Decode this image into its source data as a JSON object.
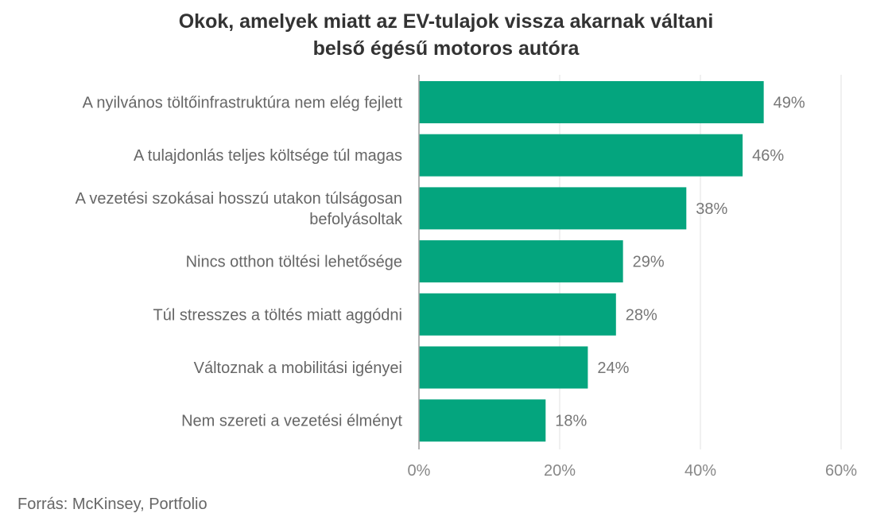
{
  "chart_data": {
    "type": "bar",
    "orientation": "horizontal",
    "title": "Okok, amelyek miatt az EV-tulajok vissza akarnak váltani belső égésű motoros autóra",
    "title_lines": [
      "Okok, amelyek miatt az EV-tulajok vissza akarnak váltani",
      "belső égésű motoros autóra"
    ],
    "categories": [
      [
        "A nyilvános töltőinfrastruktúra nem elég fejlett"
      ],
      [
        "A tulajdonlás teljes költsége túl magas"
      ],
      [
        "A vezetési szokásai hosszú utakon túlságosan",
        "befolyásoltak"
      ],
      [
        "Nincs otthon töltési lehetősége"
      ],
      [
        "Túl stresszes a töltés miatt aggódni"
      ],
      [
        "Változnak a mobilitási igényei"
      ],
      [
        "Nem szereti a vezetési élményt"
      ]
    ],
    "values": [
      49,
      46,
      38,
      29,
      28,
      24,
      18
    ],
    "value_labels": [
      "49%",
      "46%",
      "38%",
      "29%",
      "28%",
      "24%",
      "18%"
    ],
    "xlim": [
      0,
      60
    ],
    "xticks": [
      0,
      20,
      40,
      60
    ],
    "xtick_labels": [
      "0%",
      "20%",
      "40%",
      "60%"
    ],
    "grid": true,
    "bar_color": "#04a57e",
    "source": "Forrás: McKinsey, Portfolio"
  }
}
